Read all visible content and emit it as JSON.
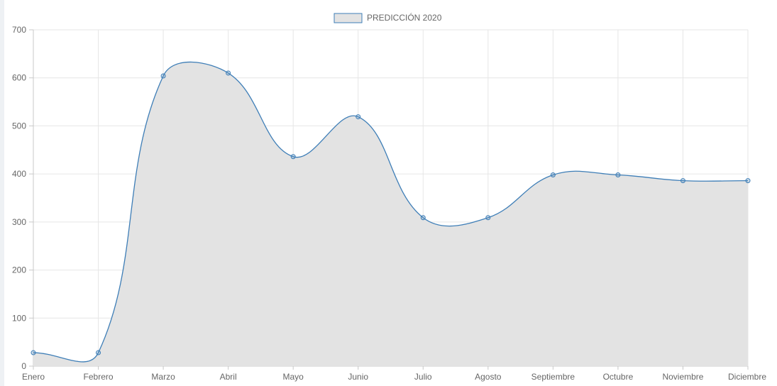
{
  "chart_data": {
    "type": "area",
    "categories": [
      "Enero",
      "Febrero",
      "Marzo",
      "Abril",
      "Mayo",
      "Junio",
      "Julio",
      "Agosto",
      "Septiembre",
      "Octubre",
      "Noviembre",
      "Diciembre"
    ],
    "series": [
      {
        "name": "PREDICCIÓN 2020",
        "values": [
          28,
          28,
          604,
          610,
          436,
          519,
          309,
          309,
          398,
          398,
          386,
          386
        ]
      }
    ],
    "ylim": [
      0,
      700
    ],
    "yticks": [
      0,
      100,
      200,
      300,
      400,
      500,
      600,
      700
    ],
    "grid": true,
    "legend": "top-center",
    "colors": {
      "line": "#3e7eb7",
      "fill": "#e3e3e3",
      "grid": "#e6e6e6",
      "axis": "#c8c8c8"
    }
  }
}
